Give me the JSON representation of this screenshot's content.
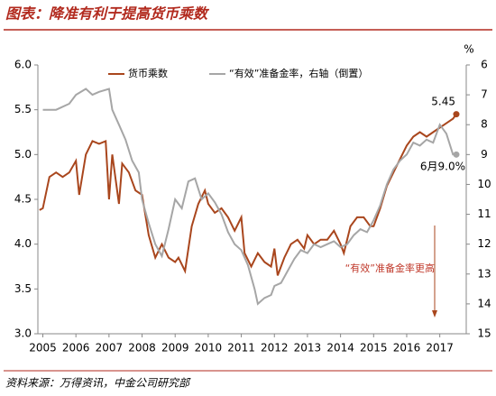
{
  "chart_data": {
    "type": "line",
    "title": "图表：降准有利于提高货币乘数",
    "source": "资料来源：万得资讯，中金公司研究部",
    "y2_label": "%",
    "annotations": [
      "5.45",
      "6月9.0%",
      "“有效”准备金率更高"
    ],
    "xlim": [
      2004.85,
      2017.8
    ],
    "xticks": [
      2005,
      2006,
      2007,
      2008,
      2009,
      2010,
      2011,
      2012,
      2013,
      2014,
      2015,
      2016,
      2017
    ],
    "ylim": [
      3.0,
      6.0
    ],
    "yticks": [
      {
        "value": 3.0,
        "label": "3.0"
      },
      {
        "value": 3.5,
        "label": "3.5"
      },
      {
        "value": 4.0,
        "label": "4.0"
      },
      {
        "value": 4.5,
        "label": "4.5"
      },
      {
        "value": 5.0,
        "label": "5.0"
      },
      {
        "value": 5.5,
        "label": "5.5"
      },
      {
        "value": 6.0,
        "label": "6.0"
      }
    ],
    "y2lim": [
      15,
      6
    ],
    "y2ticks": [
      6,
      7,
      8,
      9,
      10,
      11,
      12,
      13,
      14,
      15
    ],
    "legend": "top",
    "series": [
      {
        "name": "货币乘数",
        "color": "#a9461d",
        "x": [
          2004.9,
          2005.0,
          2005.2,
          2005.4,
          2005.6,
          2005.8,
          2006.0,
          2006.1,
          2006.3,
          2006.5,
          2006.7,
          2006.9,
          2007.0,
          2007.1,
          2007.3,
          2007.4,
          2007.6,
          2007.8,
          2008.0,
          2008.2,
          2008.4,
          2008.6,
          2008.8,
          2009.0,
          2009.1,
          2009.3,
          2009.5,
          2009.7,
          2009.9,
          2010.0,
          2010.2,
          2010.4,
          2010.6,
          2010.8,
          2011.0,
          2011.1,
          2011.3,
          2011.5,
          2011.7,
          2011.9,
          2012.0,
          2012.1,
          2012.3,
          2012.5,
          2012.7,
          2012.9,
          2013.0,
          2013.2,
          2013.4,
          2013.6,
          2013.8,
          2014.0,
          2014.1,
          2014.3,
          2014.5,
          2014.7,
          2014.9,
          2015.0,
          2015.2,
          2015.4,
          2015.6,
          2015.8,
          2016.0,
          2016.2,
          2016.4,
          2016.6,
          2016.8,
          2017.0,
          2017.2,
          2017.4,
          2017.5
        ],
        "values": [
          4.38,
          4.4,
          4.75,
          4.8,
          4.75,
          4.8,
          4.93,
          4.55,
          5.0,
          5.15,
          5.12,
          5.15,
          4.5,
          5.0,
          4.45,
          4.9,
          4.8,
          4.6,
          4.55,
          4.1,
          3.85,
          4.0,
          3.85,
          3.8,
          3.85,
          3.7,
          4.2,
          4.45,
          4.6,
          4.45,
          4.35,
          4.4,
          4.3,
          4.15,
          4.3,
          3.9,
          3.75,
          3.9,
          3.8,
          3.75,
          3.95,
          3.65,
          3.85,
          4.0,
          4.05,
          3.95,
          4.1,
          4.0,
          4.05,
          4.05,
          4.15,
          4.0,
          3.9,
          4.2,
          4.3,
          4.3,
          4.2,
          4.2,
          4.4,
          4.65,
          4.8,
          4.95,
          5.1,
          5.2,
          5.25,
          5.2,
          5.25,
          5.3,
          5.35,
          5.4,
          5.45
        ]
      },
      {
        "name": "“有效”准备金率，右轴（倒置）",
        "color": "#a6a6a6",
        "axis": "y2",
        "x": [
          2005.0,
          2005.4,
          2005.8,
          2006.0,
          2006.3,
          2006.5,
          2006.7,
          2007.0,
          2007.1,
          2007.3,
          2007.5,
          2007.7,
          2007.9,
          2008.0,
          2008.2,
          2008.4,
          2008.6,
          2008.8,
          2009.0,
          2009.2,
          2009.4,
          2009.6,
          2009.8,
          2010.0,
          2010.2,
          2010.4,
          2010.6,
          2010.8,
          2011.0,
          2011.2,
          2011.4,
          2011.5,
          2011.7,
          2011.9,
          2012.0,
          2012.2,
          2012.4,
          2012.6,
          2012.8,
          2013.0,
          2013.2,
          2013.4,
          2013.6,
          2013.8,
          2014.0,
          2014.2,
          2014.4,
          2014.6,
          2014.8,
          2015.0,
          2015.2,
          2015.4,
          2015.6,
          2015.8,
          2016.0,
          2016.2,
          2016.4,
          2016.6,
          2016.8,
          2017.0,
          2017.2,
          2017.4,
          2017.5
        ],
        "values": [
          7.5,
          7.5,
          7.3,
          7.0,
          6.8,
          7.0,
          6.9,
          6.8,
          7.5,
          8.0,
          8.5,
          9.2,
          9.6,
          10.5,
          11.3,
          12.0,
          12.4,
          11.5,
          10.5,
          10.8,
          9.9,
          9.8,
          10.5,
          10.3,
          10.6,
          11.0,
          11.6,
          12.0,
          12.2,
          12.7,
          13.5,
          14.0,
          13.8,
          13.7,
          13.4,
          13.3,
          12.9,
          12.5,
          12.2,
          12.3,
          12.0,
          12.1,
          12.0,
          11.9,
          12.1,
          12.0,
          11.7,
          11.5,
          11.6,
          11.2,
          10.7,
          10.0,
          9.5,
          9.2,
          9.0,
          8.6,
          8.7,
          8.5,
          8.6,
          8.0,
          8.3,
          9.0,
          9.0
        ]
      }
    ]
  }
}
